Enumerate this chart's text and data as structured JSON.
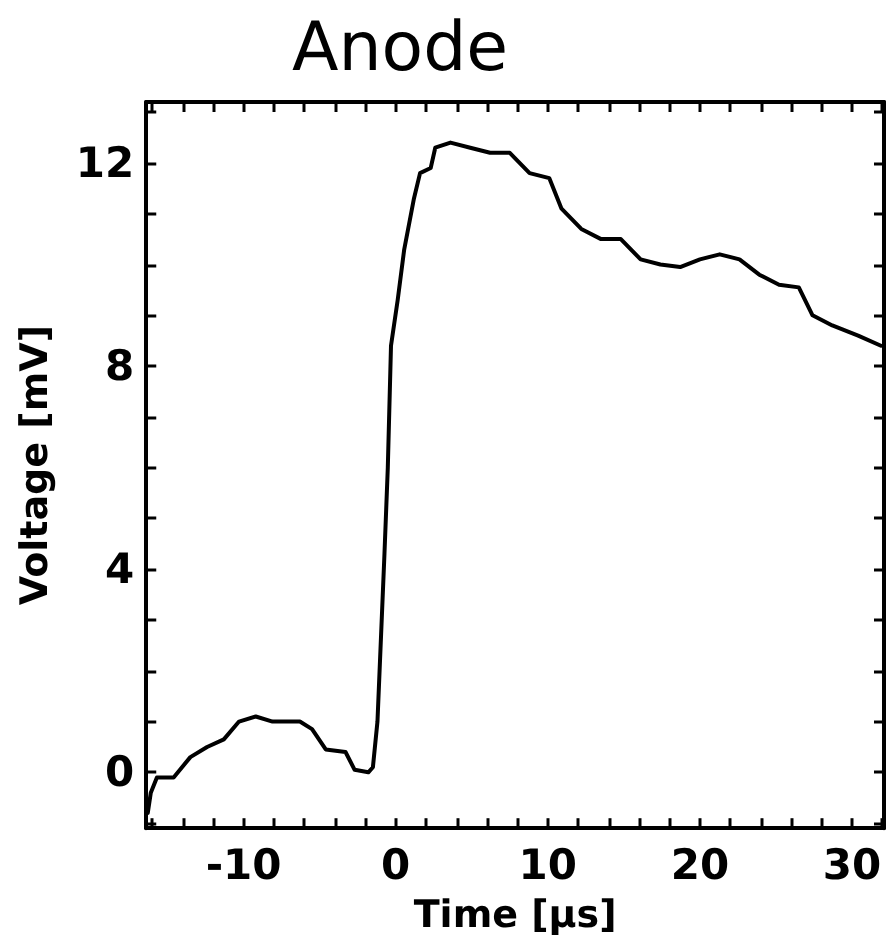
{
  "chart_data": {
    "type": "line",
    "title": "Anode",
    "xlabel": "Time [µs]",
    "ylabel": "Voltage [mV]",
    "x": [
      -16.3,
      -16.1,
      -15.7,
      -14.6,
      -13.5,
      -12.4,
      -11.3,
      -10.3,
      -9.2,
      -8.1,
      -7.0,
      -6.3,
      -5.5,
      -4.6,
      -3.3,
      -2.7,
      -1.8,
      -1.5,
      -1.2,
      -0.74,
      -0.52,
      -0.31,
      0.13,
      0.56,
      1.2,
      1.6,
      2.3,
      2.6,
      3.6,
      4.9,
      6.2,
      7.5,
      8.8,
      10.1,
      10.9,
      12.2,
      13.5,
      14.8,
      16.1,
      17.4,
      18.7,
      20.0,
      21.3,
      22.6,
      23.9,
      25.2,
      26.5,
      27.4,
      28.7,
      30.4,
      31.9
    ],
    "series": [
      {
        "color": "#000000",
        "values": [
          -0.8,
          -0.4,
          -0.1,
          -0.1,
          0.3,
          0.5,
          0.65,
          1.0,
          1.1,
          1.0,
          1.0,
          1.0,
          0.85,
          0.45,
          0.4,
          0.05,
          0,
          0.1,
          1.0,
          4.3,
          6.0,
          8.4,
          9.3,
          10.3,
          11.3,
          11.8,
          11.9,
          12.3,
          12.4,
          12.3,
          12.2,
          12.2,
          11.8,
          11.7,
          11.1,
          10.7,
          10.5,
          10.5,
          10.1,
          10.0,
          9.95,
          10.1,
          10.2,
          10.1,
          9.8,
          9.6,
          9.55,
          9.0,
          8.8,
          8.6,
          8.4
        ]
      }
    ],
    "xlim": [
      -16.4,
      32.1
    ],
    "ylim": [
      -1.1,
      13.2
    ],
    "xticks": [
      {
        "value": -16,
        "label": null
      },
      {
        "value": -14,
        "label": null
      },
      {
        "value": -12,
        "label": null
      },
      -10,
      {
        "value": -8,
        "label": null
      },
      {
        "value": -6,
        "label": null
      },
      {
        "value": -4,
        "label": null
      },
      {
        "value": -2,
        "label": null
      },
      0,
      {
        "value": 2,
        "label": null
      },
      {
        "value": 4,
        "label": null
      },
      {
        "value": 6,
        "label": null
      },
      {
        "value": 8,
        "label": null
      },
      10,
      {
        "value": 12,
        "label": null
      },
      {
        "value": 14,
        "label": null
      },
      {
        "value": 16,
        "label": null
      },
      {
        "value": 18,
        "label": null
      },
      20,
      {
        "value": 22,
        "label": null
      },
      {
        "value": 24,
        "label": null
      },
      {
        "value": 26,
        "label": null
      },
      {
        "value": 28,
        "label": null
      },
      30,
      {
        "value": 32,
        "label": null
      }
    ],
    "yticks": [
      {
        "value": -1,
        "label": null
      },
      0,
      {
        "value": 1,
        "label": null
      },
      {
        "value": 2,
        "label": null
      },
      {
        "value": 3,
        "label": null
      },
      4,
      {
        "value": 5,
        "label": null
      },
      {
        "value": 6,
        "label": null
      },
      {
        "value": 7,
        "label": null
      },
      8,
      {
        "value": 9,
        "label": null
      },
      {
        "value": 10,
        "label": null
      },
      {
        "value": 11,
        "label": null
      },
      12,
      {
        "value": 13,
        "label": null
      }
    ],
    "marker": "none",
    "line_style": "solid"
  }
}
